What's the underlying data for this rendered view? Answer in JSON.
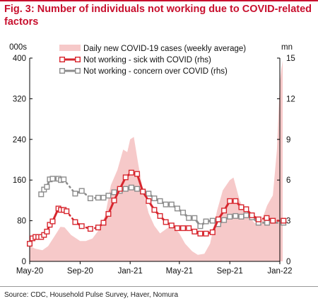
{
  "header": {
    "title": "Fig. 3: Number of individuals not working due to COVID-related factors"
  },
  "footer": {
    "source": "Source: CDC, Household Pulse Survey, Haver, Nomura"
  },
  "colors": {
    "accent": "#c8102e",
    "cases_fill": "#f6c9c9",
    "sick_line": "#d7262e",
    "concern_line": "#8c8c8c"
  },
  "chart_data": {
    "type": "line",
    "title": "Fig. 3: Number of individuals not working due to COVID-related factors",
    "left_axis": {
      "unit_label": "000s",
      "range": [
        0,
        400
      ],
      "ticks": [
        0,
        80,
        160,
        240,
        320,
        400
      ]
    },
    "right_axis": {
      "unit_label": "mn",
      "range": [
        0,
        15
      ],
      "ticks": [
        0,
        3,
        6,
        9,
        12,
        15
      ]
    },
    "x_axis": {
      "ticks": [
        "May-20",
        "Sep-20",
        "Jan-21",
        "May-21",
        "Sep-21",
        "Jan-22"
      ]
    },
    "grid": false,
    "legend_placement": "top",
    "series": [
      {
        "name": "Daily new COVID-19 cases (weekly average)",
        "axis": "left",
        "style": "area",
        "x": [
          "2020-05-01",
          "2020-05-15",
          "2020-06-01",
          "2020-06-15",
          "2020-07-01",
          "2020-07-15",
          "2020-07-25",
          "2020-08-10",
          "2020-09-01",
          "2020-09-15",
          "2020-10-01",
          "2020-10-15",
          "2020-11-01",
          "2020-11-15",
          "2020-12-01",
          "2020-12-15",
          "2020-12-25",
          "2021-01-01",
          "2021-01-10",
          "2021-01-20",
          "2021-02-01",
          "2021-02-15",
          "2021-03-01",
          "2021-03-15",
          "2021-04-01",
          "2021-04-15",
          "2021-05-01",
          "2021-05-15",
          "2021-06-01",
          "2021-06-15",
          "2021-07-01",
          "2021-07-15",
          "2021-08-01",
          "2021-08-15",
          "2021-09-01",
          "2021-09-10",
          "2021-09-25",
          "2021-10-10",
          "2021-11-01",
          "2021-11-20",
          "2021-12-01",
          "2021-12-15",
          "2021-12-25",
          "2022-01-01",
          "2022-01-05",
          "2022-01-08"
        ],
        "values": [
          30,
          25,
          22,
          30,
          50,
          68,
          67,
          52,
          40,
          40,
          45,
          60,
          90,
          150,
          180,
          220,
          215,
          240,
          245,
          195,
          140,
          95,
          70,
          55,
          65,
          70,
          55,
          35,
          20,
          13,
          15,
          35,
          100,
          140,
          160,
          165,
          120,
          95,
          75,
          85,
          110,
          130,
          220,
          350,
          380,
          395
        ]
      },
      {
        "name": "Not working - sick with COVID (rhs)",
        "axis": "right",
        "style": "line-square-markers",
        "dashed_gaps": true,
        "x": [
          "2020-05-01",
          "2020-05-08",
          "2020-05-15",
          "2020-05-22",
          "2020-05-29",
          "2020-06-05",
          "2020-06-12",
          "2020-06-19",
          "2020-06-26",
          "2020-07-10",
          "2020-07-16",
          "2020-07-23",
          "2020-07-30",
          "2020-08-20",
          "2020-09-05",
          "2020-09-26",
          "2020-10-15",
          "2020-10-28",
          "2020-11-09",
          "2020-11-23",
          "2020-12-07",
          "2020-12-21",
          "2021-01-04",
          "2021-01-18",
          "2021-02-01",
          "2021-02-15",
          "2021-03-01",
          "2021-03-15",
          "2021-03-29",
          "2021-04-12",
          "2021-04-26",
          "2021-05-10",
          "2021-05-24",
          "2021-06-07",
          "2021-06-21",
          "2021-07-05",
          "2021-07-21",
          "2021-08-04",
          "2021-08-18",
          "2021-09-01",
          "2021-09-15",
          "2021-09-29",
          "2021-10-11",
          "2021-10-25",
          "2021-11-10",
          "2021-11-30",
          "2021-12-15",
          "2022-01-10"
        ],
        "values": [
          1.3,
          1.7,
          1.8,
          1.8,
          1.8,
          1.95,
          2.2,
          2.7,
          2.95,
          3.9,
          3.8,
          3.8,
          3.7,
          2.9,
          2.6,
          2.4,
          2.5,
          2.85,
          3.5,
          4.5,
          5.35,
          6.2,
          6.55,
          6.45,
          5.15,
          4.45,
          3.8,
          3.35,
          2.9,
          2.65,
          2.45,
          2.45,
          2.45,
          2.2,
          2.05,
          2.05,
          2.15,
          3.1,
          3.75,
          4.45,
          4.45,
          4.0,
          3.85,
          3.4,
          3.1,
          3.2,
          3.0,
          3.0
        ]
      },
      {
        "name": "Not working - concern over COVID (rhs)",
        "axis": "right",
        "style": "line-square-markers",
        "dashed_gaps": true,
        "x": [
          "2020-05-29",
          "2020-06-05",
          "2020-06-12",
          "2020-06-19",
          "2020-06-26",
          "2020-07-10",
          "2020-07-16",
          "2020-07-23",
          "2020-08-20",
          "2020-09-05",
          "2020-09-26",
          "2020-10-15",
          "2020-10-28",
          "2020-11-09",
          "2020-11-23",
          "2020-12-07",
          "2020-12-21",
          "2021-01-04",
          "2021-01-18",
          "2021-02-01",
          "2021-02-15",
          "2021-03-01",
          "2021-03-15",
          "2021-03-29",
          "2021-04-12",
          "2021-04-26",
          "2021-05-10",
          "2021-05-24",
          "2021-06-07",
          "2021-06-21",
          "2021-07-05",
          "2021-07-21",
          "2021-08-04",
          "2021-08-18",
          "2021-09-01",
          "2021-09-15",
          "2021-09-29",
          "2021-10-11",
          "2021-10-25",
          "2021-11-10",
          "2021-12-01",
          "2022-01-10"
        ],
        "values": [
          4.95,
          5.3,
          5.5,
          6.05,
          6.1,
          6.1,
          6.0,
          6.05,
          5.0,
          5.2,
          4.65,
          4.7,
          4.7,
          4.85,
          5.1,
          5.2,
          5.35,
          5.45,
          5.35,
          5.15,
          5.0,
          4.65,
          4.45,
          4.2,
          4.2,
          3.9,
          3.6,
          3.2,
          3.2,
          2.6,
          2.95,
          3.0,
          2.75,
          3.05,
          3.3,
          3.35,
          3.3,
          3.4,
          3.25,
          2.85,
          2.85,
          2.85
        ]
      }
    ]
  }
}
